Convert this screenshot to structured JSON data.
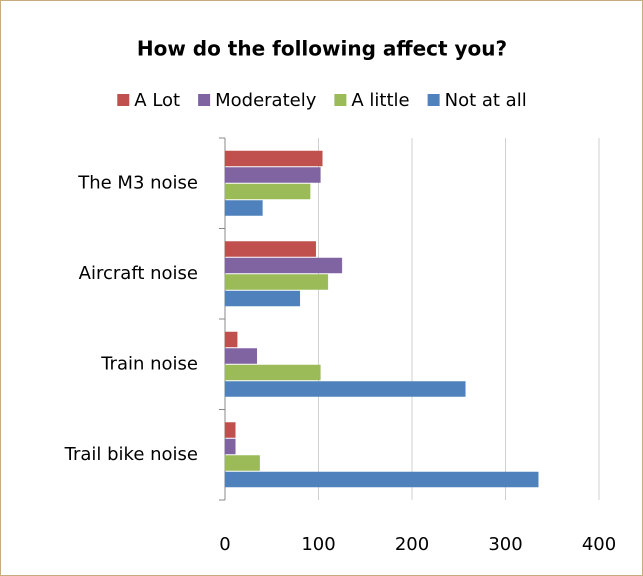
{
  "chart_data": {
    "type": "bar",
    "orientation": "horizontal",
    "title": "How do the following affect you?",
    "categories": [
      "The M3 noise",
      "Aircraft noise",
      "Train noise",
      "Trail bike noise"
    ],
    "series": [
      {
        "name": "A Lot",
        "color": "#c0504d",
        "values": [
          104,
          97,
          13,
          11
        ]
      },
      {
        "name": "Moderately",
        "color": "#8064a2",
        "values": [
          102,
          125,
          34,
          11
        ]
      },
      {
        "name": "A little",
        "color": "#9bbb59",
        "values": [
          91,
          110,
          102,
          37
        ]
      },
      {
        "name": "Not at all",
        "color": "#4f81bd",
        "values": [
          40,
          80,
          257,
          335
        ]
      }
    ],
    "xlim": [
      0,
      400
    ],
    "xticks": [
      0,
      100,
      200,
      300,
      400
    ],
    "grid": true,
    "legend": "top"
  }
}
